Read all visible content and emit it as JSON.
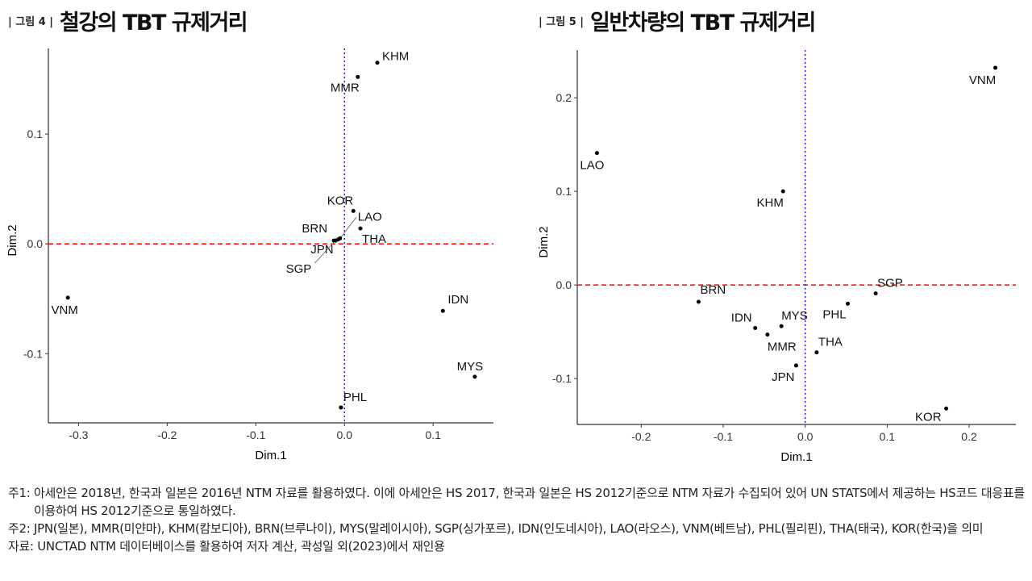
{
  "figures": [
    {
      "tag": "| 그림 4 |",
      "title": "철강의 TBT 규제거리"
    },
    {
      "tag": "| 그림 5 |",
      "title": "일반차량의 TBT 규제거리"
    }
  ],
  "chart_data": [
    {
      "type": "scatter",
      "title": "철강의 TBT 규제거리",
      "xlabel": "Dim.1",
      "ylabel": "Dim.2",
      "xlim": [
        -0.334,
        0.168
      ],
      "ylim": [
        -0.163,
        0.178
      ],
      "xticks": [
        -0.3,
        -0.2,
        -0.1,
        0.0,
        0.1
      ],
      "xtick_labels": [
        "-0.3",
        "-0.2",
        "-0.1",
        "0.0",
        "0.1"
      ],
      "yticks": [
        0.1,
        0.0,
        -0.1
      ],
      "ytick_labels": [
        "0.1",
        "0.0",
        "-0.1"
      ],
      "reference_lines": {
        "horizontal": 0,
        "vertical": 0
      },
      "points": [
        {
          "label": "KHM",
          "x": 0.037,
          "y": 0.165
        },
        {
          "label": "MMR",
          "x": 0.015,
          "y": 0.152
        },
        {
          "label": "KOR",
          "x": 0.01,
          "y": 0.03
        },
        {
          "label": "LAO",
          "x": -0.005,
          "y": 0.005
        },
        {
          "label": "THA",
          "x": 0.018,
          "y": 0.014
        },
        {
          "label": "BRN",
          "x": -0.012,
          "y": 0.003
        },
        {
          "label": "JPN",
          "x": -0.007,
          "y": 0.004
        },
        {
          "label": "SGP",
          "x": -0.01,
          "y": 0.003
        },
        {
          "label": "VNM",
          "x": -0.312,
          "y": -0.049
        },
        {
          "label": "IDN",
          "x": 0.111,
          "y": -0.061
        },
        {
          "label": "MYS",
          "x": 0.147,
          "y": -0.121
        },
        {
          "label": "PHL",
          "x": -0.004,
          "y": -0.149
        }
      ]
    },
    {
      "type": "scatter",
      "title": "일반차량의 TBT 규제거리",
      "xlabel": "Dim.1",
      "ylabel": "Dim.2",
      "xlim": [
        -0.278,
        0.257
      ],
      "ylim": [
        -0.149,
        0.251
      ],
      "xticks": [
        -0.2,
        -0.1,
        0.0,
        0.1,
        0.2
      ],
      "xtick_labels": [
        "-0.2",
        "-0.1",
        "0.0",
        "0.1",
        "0.2"
      ],
      "yticks": [
        0.2,
        0.1,
        0.0,
        -0.1
      ],
      "ytick_labels": [
        "0.2",
        "0.1",
        "0.0",
        "-0.1"
      ],
      "reference_lines": {
        "horizontal": 0,
        "vertical": 0
      },
      "points": [
        {
          "label": "VNM",
          "x": 0.232,
          "y": 0.232
        },
        {
          "label": "LAO",
          "x": -0.254,
          "y": 0.141
        },
        {
          "label": "KHM",
          "x": -0.027,
          "y": 0.1
        },
        {
          "label": "SGP",
          "x": 0.086,
          "y": -0.009
        },
        {
          "label": "PHL",
          "x": 0.052,
          "y": -0.02
        },
        {
          "label": "BRN",
          "x": -0.13,
          "y": -0.018
        },
        {
          "label": "IDN",
          "x": -0.061,
          "y": -0.046
        },
        {
          "label": "MYS",
          "x": -0.029,
          "y": -0.044
        },
        {
          "label": "MMR",
          "x": -0.046,
          "y": -0.053
        },
        {
          "label": "THA",
          "x": 0.014,
          "y": -0.072
        },
        {
          "label": "JPN",
          "x": -0.011,
          "y": -0.086
        },
        {
          "label": "KOR",
          "x": 0.172,
          "y": -0.132
        }
      ]
    }
  ],
  "notes": [
    {
      "key": "주1: ",
      "text": "아세안은 2018년, 한국과 일본은 2016년 NTM 자료를 활용하였다. 이에 아세안은 HS 2017, 한국과 일본은 HS 2012기준으로 NTM 자료가 수집되어 있어 UN STATS에서 제공하는 HS코드 대응표를 이용하여 HS 2012기준으로 통일하였다."
    },
    {
      "key": "주2: ",
      "text": "JPN(일본), MMR(미얀마), KHM(캄보디아), BRN(브루나이), MYS(말레이시아), SGP(싱가포르), IDN(인도네시아), LAO(라오스), VNM(베트남), PHL(필리핀), THA(태국), KOR(한국)을 의미"
    },
    {
      "key": "자료: ",
      "text": "UNCTAD NTM 데이터베이스를 활용하여 저자 계산, 곽성일 외(2023)에서 재인용"
    }
  ]
}
